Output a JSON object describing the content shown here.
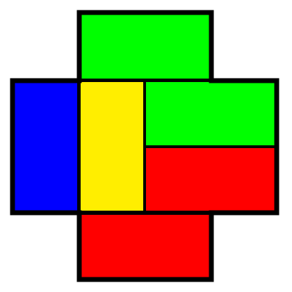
{
  "palette": {
    "green": "#00ff00",
    "blue": "#0000ff",
    "yellow": "#ffee00",
    "red": "#ff0000",
    "outline": "#000000",
    "background": "#ffffff"
  },
  "pieces": [
    {
      "name": "top-green-block",
      "color": "green"
    },
    {
      "name": "left-blue-block",
      "color": "blue"
    },
    {
      "name": "center-yellow-block",
      "color": "yellow"
    },
    {
      "name": "right-upper-green-block",
      "color": "green"
    },
    {
      "name": "right-lower-red-block",
      "color": "red"
    },
    {
      "name": "bottom-red-block",
      "color": "red"
    }
  ]
}
